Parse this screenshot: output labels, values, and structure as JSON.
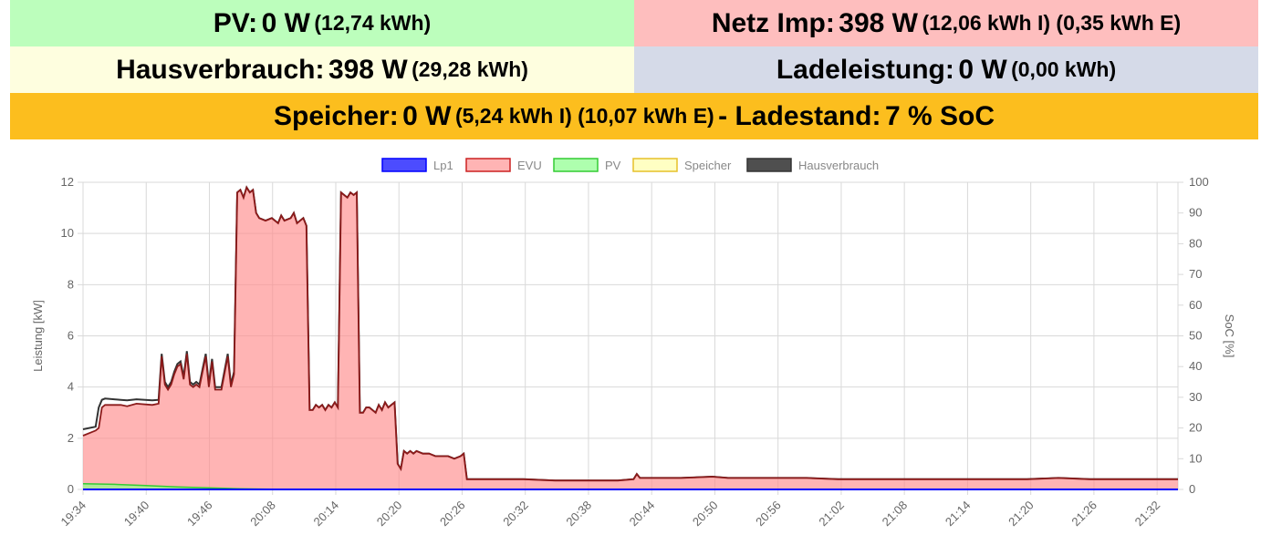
{
  "tiles": {
    "pv": {
      "label": "PV:",
      "value": "0 W",
      "detail": "(12,74 kWh)",
      "color": "#bcfebc"
    },
    "netz": {
      "label": "Netz Imp:",
      "value": "398 W",
      "detail": "(12,06 kWh I) (0,35 kWh E)",
      "color": "#febebe"
    },
    "haus": {
      "label": "Hausverbrauch:",
      "value": "398 W",
      "detail": "(29,28 kWh)",
      "color": "#fefedf"
    },
    "lade": {
      "label": "Ladeleistung:",
      "value": "0 W",
      "detail": "(0,00 kWh)",
      "color": "#d5dae8"
    },
    "speicher": {
      "label": "Speicher:",
      "value": "0 W",
      "detail": "(5,24 kWh I) (10,07 kWh E)",
      "mid": "- Ladestand:",
      "soc": "7 % SoC",
      "color": "#fcbe1e"
    }
  },
  "chart_data": {
    "type": "area",
    "legend_position": "top",
    "grid": true,
    "ylabel": "Leistung [kW]",
    "y2label": "SoC [%]",
    "ylim": [
      0,
      12
    ],
    "y2lim": [
      0,
      100
    ],
    "yticks": [
      "0",
      "2",
      "4",
      "6",
      "8",
      "10",
      "12"
    ],
    "y2ticks": [
      "0",
      "10",
      "20",
      "30",
      "40",
      "50",
      "60",
      "70",
      "80",
      "90",
      "100"
    ],
    "xticks": [
      "19:34",
      "19:40",
      "19:46",
      "20:08",
      "20:14",
      "20:20",
      "20:26",
      "20:32",
      "20:38",
      "20:44",
      "20:50",
      "20:56",
      "21:02",
      "21:08",
      "21:14",
      "21:20",
      "21:26",
      "21:32"
    ],
    "series": [
      {
        "name": "Lp1",
        "color": "#0000ff",
        "fill": "rgba(0,0,255,0.7)",
        "points": [
          [
            0,
            0
          ],
          [
            348,
            0
          ]
        ]
      },
      {
        "name": "EVU",
        "color": "#cc2222",
        "fill": "rgba(255,140,140,0.65)",
        "points": [
          [
            0,
            2.1
          ],
          [
            4,
            2.3
          ],
          [
            5,
            2.4
          ],
          [
            6,
            3.2
          ],
          [
            7,
            3.3
          ],
          [
            12,
            3.3
          ],
          [
            14,
            3.25
          ],
          [
            17,
            3.35
          ],
          [
            22,
            3.3
          ],
          [
            24,
            3.35
          ],
          [
            25,
            5.2
          ],
          [
            26,
            4.1
          ],
          [
            27,
            3.9
          ],
          [
            28,
            4.1
          ],
          [
            29,
            4.5
          ],
          [
            30,
            4.8
          ],
          [
            31,
            4.9
          ],
          [
            32,
            4.3
          ],
          [
            33,
            5.3
          ],
          [
            34,
            4.1
          ],
          [
            35,
            4.0
          ],
          [
            36,
            4.1
          ],
          [
            37,
            4.0
          ],
          [
            38,
            4.6
          ],
          [
            39,
            5.2
          ],
          [
            40,
            4.0
          ],
          [
            41,
            5.0
          ],
          [
            42,
            3.9
          ],
          [
            44,
            3.9
          ],
          [
            46,
            5.2
          ],
          [
            47,
            4.0
          ],
          [
            48,
            4.5
          ],
          [
            49,
            11.6
          ],
          [
            50,
            11.7
          ],
          [
            51,
            11.4
          ],
          [
            52,
            11.8
          ],
          [
            53,
            11.6
          ],
          [
            54,
            11.7
          ],
          [
            55,
            10.8
          ],
          [
            56,
            10.6
          ],
          [
            58,
            10.5
          ],
          [
            60,
            10.6
          ],
          [
            62,
            10.4
          ],
          [
            63,
            10.7
          ],
          [
            64,
            10.5
          ],
          [
            66,
            10.6
          ],
          [
            67,
            10.8
          ],
          [
            68,
            10.4
          ],
          [
            69,
            10.5
          ],
          [
            70,
            10.6
          ],
          [
            71,
            10.3
          ],
          [
            72,
            3.1
          ],
          [
            73,
            3.1
          ],
          [
            74,
            3.3
          ],
          [
            75,
            3.2
          ],
          [
            76,
            3.3
          ],
          [
            77,
            3.1
          ],
          [
            78,
            3.3
          ],
          [
            79,
            3.2
          ],
          [
            80,
            3.4
          ],
          [
            81,
            3.2
          ],
          [
            82,
            11.6
          ],
          [
            83,
            11.5
          ],
          [
            84,
            11.4
          ],
          [
            85,
            11.6
          ],
          [
            86,
            11.5
          ],
          [
            87,
            11.6
          ],
          [
            88,
            3.0
          ],
          [
            89,
            3.0
          ],
          [
            90,
            3.2
          ],
          [
            91,
            3.2
          ],
          [
            93,
            3.0
          ],
          [
            94,
            3.3
          ],
          [
            95,
            3.1
          ],
          [
            96,
            3.4
          ],
          [
            97,
            3.2
          ],
          [
            98,
            3.3
          ],
          [
            99,
            3.4
          ],
          [
            100,
            1.0
          ],
          [
            101,
            0.8
          ],
          [
            102,
            1.5
          ],
          [
            103,
            1.4
          ],
          [
            104,
            1.5
          ],
          [
            105,
            1.4
          ],
          [
            106,
            1.5
          ],
          [
            108,
            1.4
          ],
          [
            110,
            1.4
          ],
          [
            112,
            1.3
          ],
          [
            114,
            1.3
          ],
          [
            116,
            1.3
          ],
          [
            118,
            1.2
          ],
          [
            120,
            1.3
          ],
          [
            121,
            1.4
          ],
          [
            122,
            0.4
          ],
          [
            130,
            0.4
          ],
          [
            140,
            0.4
          ],
          [
            150,
            0.35
          ],
          [
            160,
            0.35
          ],
          [
            170,
            0.35
          ],
          [
            175,
            0.4
          ],
          [
            176,
            0.6
          ],
          [
            177,
            0.45
          ],
          [
            180,
            0.45
          ],
          [
            190,
            0.45
          ],
          [
            200,
            0.5
          ],
          [
            205,
            0.45
          ],
          [
            210,
            0.45
          ],
          [
            220,
            0.45
          ],
          [
            230,
            0.45
          ],
          [
            240,
            0.4
          ],
          [
            250,
            0.4
          ],
          [
            260,
            0.4
          ],
          [
            270,
            0.4
          ],
          [
            280,
            0.4
          ],
          [
            290,
            0.4
          ],
          [
            300,
            0.4
          ],
          [
            310,
            0.45
          ],
          [
            320,
            0.4
          ],
          [
            330,
            0.4
          ],
          [
            340,
            0.4
          ],
          [
            348,
            0.4
          ]
        ]
      },
      {
        "name": "PV",
        "color": "#33cc33",
        "fill": "rgba(140,255,140,0.7)",
        "points": [
          [
            0,
            0.22
          ],
          [
            10,
            0.2
          ],
          [
            20,
            0.15
          ],
          [
            30,
            0.1
          ],
          [
            40,
            0.06
          ],
          [
            50,
            0.03
          ],
          [
            60,
            0.01
          ],
          [
            70,
            0.01
          ],
          [
            80,
            0
          ],
          [
            348,
            0
          ]
        ]
      },
      {
        "name": "Speicher",
        "color": "#e6c02a",
        "fill": "rgba(255,255,170,0.7)",
        "points": [
          [
            0,
            0
          ],
          [
            348,
            0
          ]
        ]
      },
      {
        "name": "Hausverbrauch",
        "color": "#333333",
        "fill": "rgba(60,60,60,0.9)",
        "points": [
          [
            0,
            2.35
          ],
          [
            4,
            2.45
          ],
          [
            5,
            3.2
          ],
          [
            6,
            3.5
          ],
          [
            7,
            3.55
          ],
          [
            12,
            3.5
          ],
          [
            14,
            3.48
          ],
          [
            17,
            3.52
          ],
          [
            22,
            3.48
          ],
          [
            24,
            3.5
          ],
          [
            25,
            5.3
          ],
          [
            26,
            4.2
          ],
          [
            27,
            4.0
          ],
          [
            28,
            4.2
          ],
          [
            29,
            4.6
          ],
          [
            30,
            4.9
          ],
          [
            31,
            5.0
          ],
          [
            32,
            4.4
          ],
          [
            33,
            5.4
          ],
          [
            34,
            4.2
          ],
          [
            35,
            4.1
          ],
          [
            36,
            4.2
          ],
          [
            37,
            4.1
          ],
          [
            38,
            4.7
          ],
          [
            39,
            5.3
          ],
          [
            40,
            4.1
          ],
          [
            41,
            5.1
          ],
          [
            42,
            4.0
          ],
          [
            44,
            4.0
          ],
          [
            46,
            5.3
          ],
          [
            47,
            4.1
          ],
          [
            48,
            4.6
          ],
          [
            49,
            11.6
          ],
          [
            50,
            11.7
          ],
          [
            51,
            11.4
          ],
          [
            52,
            11.8
          ],
          [
            53,
            11.6
          ],
          [
            54,
            11.7
          ],
          [
            55,
            10.8
          ],
          [
            56,
            10.6
          ],
          [
            58,
            10.5
          ],
          [
            60,
            10.6
          ],
          [
            62,
            10.4
          ],
          [
            63,
            10.7
          ],
          [
            64,
            10.5
          ],
          [
            66,
            10.6
          ],
          [
            67,
            10.8
          ],
          [
            68,
            10.4
          ],
          [
            69,
            10.5
          ],
          [
            70,
            10.6
          ],
          [
            71,
            10.3
          ],
          [
            72,
            3.1
          ],
          [
            73,
            3.1
          ],
          [
            74,
            3.3
          ],
          [
            75,
            3.2
          ],
          [
            76,
            3.3
          ],
          [
            77,
            3.1
          ],
          [
            78,
            3.3
          ],
          [
            79,
            3.2
          ],
          [
            80,
            3.4
          ],
          [
            81,
            3.2
          ],
          [
            82,
            11.6
          ],
          [
            83,
            11.5
          ],
          [
            84,
            11.4
          ],
          [
            85,
            11.6
          ],
          [
            86,
            11.5
          ],
          [
            87,
            11.6
          ],
          [
            88,
            3.0
          ],
          [
            89,
            3.0
          ],
          [
            90,
            3.2
          ],
          [
            91,
            3.2
          ],
          [
            93,
            3.0
          ],
          [
            94,
            3.3
          ],
          [
            95,
            3.1
          ],
          [
            96,
            3.4
          ],
          [
            97,
            3.2
          ],
          [
            98,
            3.3
          ],
          [
            99,
            3.4
          ],
          [
            100,
            1.0
          ],
          [
            101,
            0.8
          ],
          [
            102,
            1.5
          ],
          [
            103,
            1.4
          ],
          [
            104,
            1.5
          ],
          [
            105,
            1.4
          ],
          [
            106,
            1.5
          ],
          [
            108,
            1.4
          ],
          [
            110,
            1.4
          ],
          [
            112,
            1.3
          ],
          [
            114,
            1.3
          ],
          [
            116,
            1.3
          ],
          [
            118,
            1.2
          ],
          [
            120,
            1.3
          ],
          [
            121,
            1.4
          ],
          [
            122,
            0.4
          ],
          [
            130,
            0.4
          ],
          [
            140,
            0.4
          ],
          [
            150,
            0.35
          ],
          [
            160,
            0.35
          ],
          [
            170,
            0.35
          ],
          [
            175,
            0.4
          ],
          [
            176,
            0.6
          ],
          [
            177,
            0.45
          ],
          [
            180,
            0.45
          ],
          [
            190,
            0.45
          ],
          [
            200,
            0.5
          ],
          [
            205,
            0.45
          ],
          [
            210,
            0.45
          ],
          [
            220,
            0.45
          ],
          [
            230,
            0.45
          ],
          [
            240,
            0.4
          ],
          [
            250,
            0.4
          ],
          [
            260,
            0.4
          ],
          [
            270,
            0.4
          ],
          [
            280,
            0.4
          ],
          [
            290,
            0.4
          ],
          [
            300,
            0.4
          ],
          [
            310,
            0.45
          ],
          [
            320,
            0.4
          ],
          [
            330,
            0.4
          ],
          [
            340,
            0.4
          ],
          [
            348,
            0.4
          ]
        ]
      }
    ]
  }
}
